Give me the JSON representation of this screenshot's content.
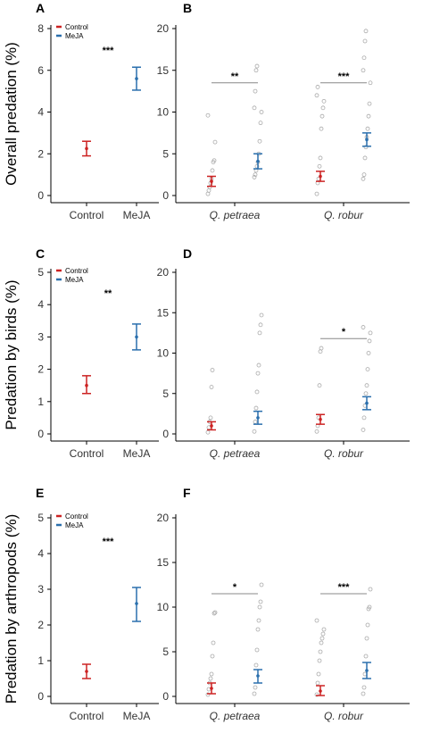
{
  "colors": {
    "Control": "#cc2222",
    "MeJA": "#2a6fad",
    "raw_point": "#aaaaaa",
    "axis": "#000000",
    "sig_line": "#888888"
  },
  "chart_data": [
    {
      "panel": "A",
      "type": "scatter",
      "layout": "simple",
      "ylabel": "Overall predation (%)",
      "ylim": [
        0,
        8
      ],
      "yticks": [
        0,
        2,
        4,
        6,
        8
      ],
      "categories": [
        "Control",
        "MeJA"
      ],
      "legend": [
        "Control",
        "MeJA"
      ],
      "legend_position": "top-left",
      "series": [
        {
          "name": "Control",
          "mean": 2.25,
          "lower": 1.9,
          "upper": 2.6
        },
        {
          "name": "MeJA",
          "mean": 5.6,
          "lower": 5.05,
          "upper": 6.15
        }
      ],
      "significance": [
        {
          "label": "***"
        }
      ]
    },
    {
      "panel": "B",
      "type": "scatter",
      "layout": "grouped",
      "ylim": [
        0,
        20
      ],
      "yticks": [
        0,
        5,
        10,
        15,
        20
      ],
      "categories": [
        "Q. petraea",
        "Q. robur"
      ],
      "groups": [
        {
          "category": "Q. petraea",
          "series": [
            {
              "name": "Control",
              "mean": 1.7,
              "lower": 1.1,
              "upper": 2.3,
              "points": [
                0.2,
                0.6,
                1.0,
                1.5,
                2.0,
                3.0,
                4.0,
                4.2,
                6.4,
                9.6
              ]
            },
            {
              "name": "MeJA",
              "mean": 4.1,
              "lower": 3.2,
              "upper": 5.0,
              "points": [
                2.2,
                2.5,
                3.0,
                3.5,
                4.0,
                5.0,
                6.5,
                8.7,
                10.0,
                10.5,
                12.5,
                15.0,
                15.5
              ]
            }
          ]
        },
        {
          "category": "Q. robur",
          "series": [
            {
              "name": "Control",
              "mean": 2.3,
              "lower": 1.7,
              "upper": 2.9,
              "points": [
                0.2,
                1.5,
                2.0,
                3.5,
                4.5,
                8.0,
                9.5,
                10.5,
                11.3,
                12.0,
                13.0
              ]
            },
            {
              "name": "MeJA",
              "mean": 6.7,
              "lower": 5.9,
              "upper": 7.5,
              "points": [
                2.0,
                2.5,
                4.5,
                5.8,
                7.0,
                8.0,
                9.5,
                11.0,
                13.5,
                15.0,
                16.5,
                18.5,
                19.7
              ]
            }
          ]
        }
      ],
      "significance": [
        {
          "category": "Q. petraea",
          "label": "**",
          "y": 13.5
        },
        {
          "category": "Q. robur",
          "label": "***",
          "y": 13.5
        }
      ]
    },
    {
      "panel": "C",
      "type": "scatter",
      "layout": "simple",
      "ylabel": "Predation by birds (%)",
      "ylim": [
        0,
        5
      ],
      "yticks": [
        0,
        1,
        2,
        3,
        4,
        5
      ],
      "categories": [
        "Control",
        "MeJA"
      ],
      "legend": [
        "Control",
        "MeJA"
      ],
      "legend_position": "top-left",
      "series": [
        {
          "name": "Control",
          "mean": 1.5,
          "lower": 1.25,
          "upper": 1.8
        },
        {
          "name": "MeJA",
          "mean": 3.0,
          "lower": 2.6,
          "upper": 3.4
        }
      ],
      "significance": [
        {
          "label": "**"
        }
      ]
    },
    {
      "panel": "D",
      "type": "scatter",
      "layout": "grouped",
      "ylim": [
        0,
        20
      ],
      "yticks": [
        0,
        5,
        10,
        15,
        20
      ],
      "categories": [
        "Q. petraea",
        "Q. robur"
      ],
      "groups": [
        {
          "category": "Q. petraea",
          "series": [
            {
              "name": "Control",
              "mean": 1.0,
              "lower": 0.5,
              "upper": 1.5,
              "points": [
                0.2,
                0.8,
                1.5,
                2.0,
                5.8,
                7.9
              ]
            },
            {
              "name": "MeJA",
              "mean": 2.0,
              "lower": 1.2,
              "upper": 2.8,
              "points": [
                0.3,
                1.5,
                3.2,
                5.2,
                7.5,
                8.5,
                12.5,
                13.5,
                14.7
              ]
            }
          ]
        },
        {
          "category": "Q. robur",
          "series": [
            {
              "name": "Control",
              "mean": 1.8,
              "lower": 1.2,
              "upper": 2.4,
              "points": [
                0.3,
                1.0,
                2.0,
                6.0,
                10.2,
                10.6
              ]
            },
            {
              "name": "MeJA",
              "mean": 3.8,
              "lower": 3.0,
              "upper": 4.6,
              "points": [
                0.5,
                2.0,
                3.5,
                5.0,
                6.0,
                8.0,
                10.0,
                11.5,
                12.5,
                13.2
              ]
            }
          ]
        }
      ],
      "significance": [
        {
          "category": "Q. robur",
          "label": "*",
          "y": 11.8
        }
      ]
    },
    {
      "panel": "E",
      "type": "scatter",
      "layout": "simple",
      "ylabel": "Predation by arthropods (%)",
      "ylim": [
        0,
        5
      ],
      "yticks": [
        0,
        1,
        2,
        3,
        4,
        5
      ],
      "categories": [
        "Control",
        "MeJA"
      ],
      "legend": [
        "Control",
        "MeJA"
      ],
      "legend_position": "top-left",
      "series": [
        {
          "name": "Control",
          "mean": 0.7,
          "lower": 0.5,
          "upper": 0.9
        },
        {
          "name": "MeJA",
          "mean": 2.6,
          "lower": 2.1,
          "upper": 3.05
        }
      ],
      "significance": [
        {
          "label": "***"
        }
      ]
    },
    {
      "panel": "F",
      "type": "scatter",
      "layout": "grouped",
      "ylim": [
        0,
        20
      ],
      "yticks": [
        0,
        5,
        10,
        15,
        20
      ],
      "categories": [
        "Q. petraea",
        "Q. robur"
      ],
      "groups": [
        {
          "category": "Q. petraea",
          "series": [
            {
              "name": "Control",
              "mean": 0.9,
              "lower": 0.3,
              "upper": 1.5,
              "points": [
                0.2,
                0.8,
                1.5,
                2.0,
                2.5,
                4.5,
                6.0,
                9.3,
                9.4
              ]
            },
            {
              "name": "MeJA",
              "mean": 2.3,
              "lower": 1.5,
              "upper": 3.0,
              "points": [
                0.3,
                1.0,
                3.5,
                5.2,
                7.5,
                8.5,
                10.0,
                10.6,
                12.5
              ]
            }
          ]
        },
        {
          "category": "Q. robur",
          "series": [
            {
              "name": "Control",
              "mean": 0.6,
              "lower": 0.1,
              "upper": 1.2,
              "points": [
                0.2,
                1.5,
                2.5,
                4.0,
                5.0,
                6.0,
                6.5,
                7.0,
                7.5,
                8.5
              ]
            },
            {
              "name": "MeJA",
              "mean": 2.9,
              "lower": 2.0,
              "upper": 3.8,
              "points": [
                0.3,
                1.0,
                2.5,
                4.5,
                6.5,
                8.0,
                9.8,
                10.0,
                12.0
              ]
            }
          ]
        }
      ],
      "significance": [
        {
          "category": "Q. petraea",
          "label": "*",
          "y": 11.5
        },
        {
          "category": "Q. robur",
          "label": "***",
          "y": 11.5
        }
      ]
    }
  ]
}
